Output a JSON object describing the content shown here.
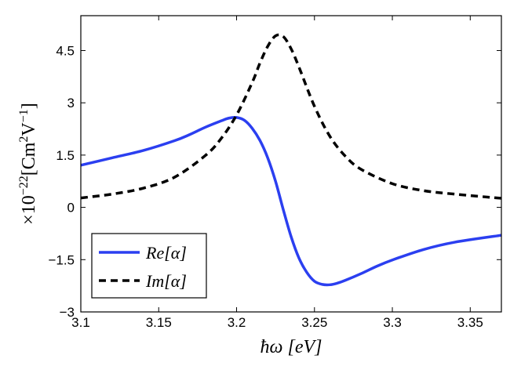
{
  "chart_data": {
    "type": "line",
    "xlabel": "ħω [eV]",
    "ylabel_prefix": "×10",
    "ylabel_exp": "−22",
    "ylabel_unit_main": "[Cm",
    "ylabel_unit_exp1": "2",
    "ylabel_unit_mid": "V",
    "ylabel_unit_exp2": "−1",
    "ylabel_unit_end": "]",
    "xlim": [
      3.1,
      3.37
    ],
    "ylim": [
      -3,
      5.5
    ],
    "x_ticks": [
      3.1,
      3.15,
      3.2,
      3.25,
      3.3,
      3.35
    ],
    "x_tick_labels": [
      "3.1",
      "3.15",
      "3.2",
      "3.25",
      "3.3",
      "3.35"
    ],
    "y_ticks": [
      -3,
      -1.5,
      0,
      1.5,
      3,
      4.5
    ],
    "y_tick_labels": [
      "−3",
      "−1.5",
      "0",
      "1.5",
      "3",
      "4.5"
    ],
    "grid": false,
    "legend_position": "bottom-left",
    "series": [
      {
        "name": "Re[α]",
        "color": "#2b3ff0",
        "style": "solid",
        "x": [
          3.1,
          3.12,
          3.14,
          3.16,
          3.17,
          3.18,
          3.19,
          3.195,
          3.2,
          3.205,
          3.21,
          3.215,
          3.22,
          3.225,
          3.23,
          3.235,
          3.24,
          3.245,
          3.25,
          3.255,
          3.26,
          3.265,
          3.27,
          3.28,
          3.29,
          3.3,
          3.32,
          3.34,
          3.37
        ],
        "y": [
          1.21,
          1.42,
          1.63,
          1.91,
          2.09,
          2.3,
          2.48,
          2.56,
          2.58,
          2.5,
          2.27,
          1.92,
          1.42,
          0.75,
          -0.07,
          -0.84,
          -1.45,
          -1.86,
          -2.12,
          -2.21,
          -2.22,
          -2.17,
          -2.09,
          -1.9,
          -1.69,
          -1.51,
          -1.21,
          -1.0,
          -0.8
        ]
      },
      {
        "name": "Im[α]",
        "color": "#000000",
        "style": "dashed",
        "x": [
          3.1,
          3.12,
          3.14,
          3.16,
          3.18,
          3.19,
          3.2,
          3.21,
          3.215,
          3.22,
          3.225,
          3.23,
          3.235,
          3.24,
          3.25,
          3.26,
          3.27,
          3.28,
          3.3,
          3.32,
          3.34,
          3.37
        ],
        "y": [
          0.27,
          0.38,
          0.55,
          0.86,
          1.49,
          1.97,
          2.65,
          3.58,
          4.14,
          4.62,
          4.92,
          4.9,
          4.55,
          4.03,
          2.9,
          2.03,
          1.46,
          1.09,
          0.68,
          0.48,
          0.38,
          0.26
        ]
      }
    ]
  }
}
